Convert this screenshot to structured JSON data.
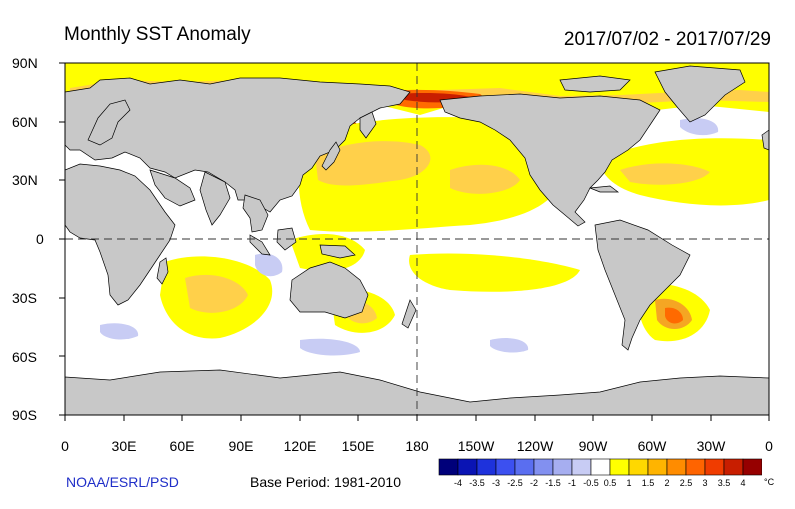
{
  "header": {
    "title": "Monthly SST Anomaly",
    "date_range": "2017/07/02 - 2017/07/29"
  },
  "axes": {
    "lat_labels": [
      "90N",
      "60N",
      "30N",
      "0",
      "30S",
      "60S",
      "90S"
    ],
    "lon_labels": [
      "0",
      "30E",
      "60E",
      "90E",
      "120E",
      "150E",
      "180",
      "150W",
      "120W",
      "90W",
      "60W",
      "30W",
      "0"
    ]
  },
  "footer": {
    "credit": "NOAA/ESRL/PSD",
    "base_period": "Base Period: 1981-2010"
  },
  "colorbar": {
    "labels": [
      "-4",
      "-3.5",
      "-3",
      "-2.5",
      "-2",
      "-1.5",
      "-1",
      "-0.5",
      "0.5",
      "1",
      "1.5",
      "2",
      "2.5",
      "3",
      "3.5",
      "4"
    ],
    "colors": [
      "#00007a",
      "#0a14b4",
      "#1e32dc",
      "#3c50f0",
      "#5a6ef0",
      "#8290f0",
      "#a6aef0",
      "#c8ccf4",
      "#ffffff",
      "#ffff00",
      "#ffd800",
      "#ffb400",
      "#ff8c00",
      "#ff6400",
      "#f03c00",
      "#c81e00",
      "#960000"
    ],
    "unit": "°C"
  },
  "map_colors": {
    "land": "#c8c8c8",
    "ocean": "#ffffff",
    "weak_warm": "#ffff00",
    "warm": "#ffd04a",
    "strong_warm": "#f5a623",
    "hot": "#ff6a00",
    "very_hot": "#c81e00",
    "weak_cool": "#c8ccf4"
  }
}
